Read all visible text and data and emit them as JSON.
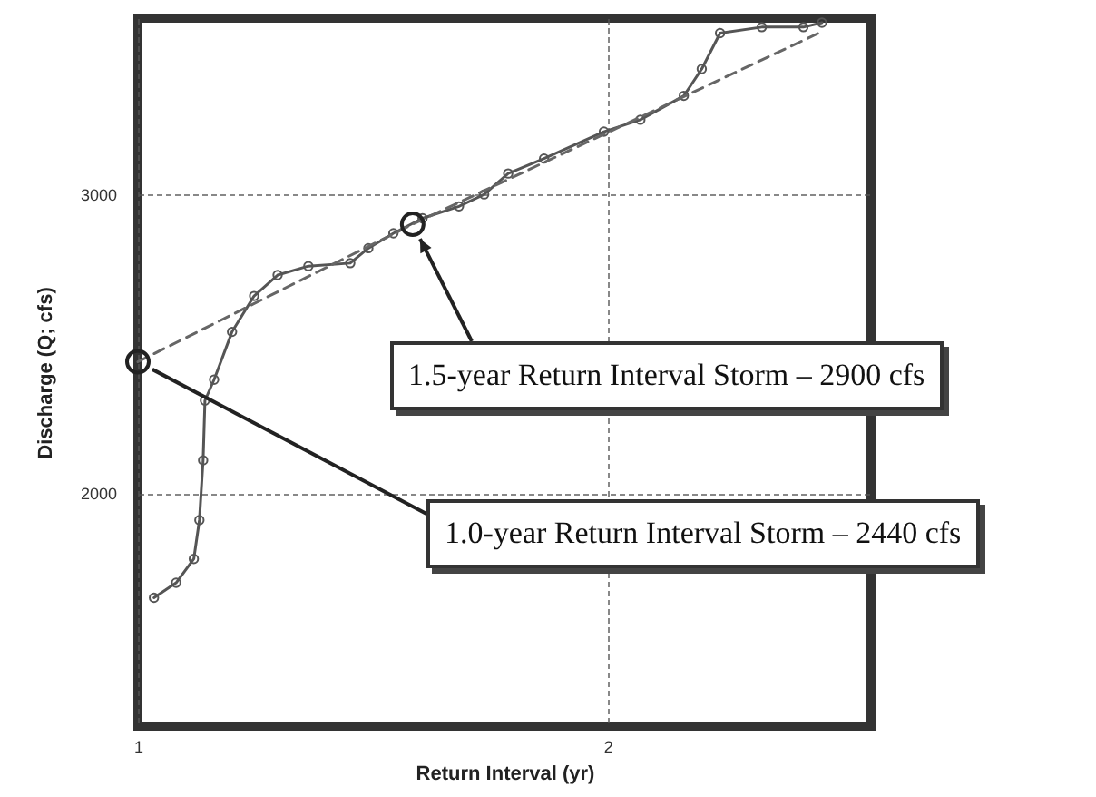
{
  "chart_data": {
    "type": "line",
    "xlabel": "Return Interval (yr)",
    "ylabel": "Discharge (Q; cfs)",
    "log": "x",
    "xlim": [
      1,
      2.95
    ],
    "xticks": [
      1,
      2
    ],
    "ylim": [
      1220,
      3590
    ],
    "yticks": [
      2000,
      3000
    ],
    "grid": true,
    "series": [
      {
        "color": "#555555",
        "marker": "circle",
        "line_style": "solid",
        "x": [
          1.024,
          1.058,
          1.086,
          1.095,
          1.101,
          1.104,
          1.119,
          1.149,
          1.187,
          1.229,
          1.286,
          1.368,
          1.405,
          1.458,
          1.522,
          1.606,
          1.667,
          1.727,
          1.821,
          1.989,
          2.099,
          2.238,
          2.298,
          2.361,
          2.511,
          2.67,
          2.744
        ],
        "values": [
          1650,
          1700,
          1780,
          1910,
          2110,
          2310,
          2380,
          2540,
          2660,
          2730,
          2760,
          2770,
          2820,
          2870,
          2920,
          2960,
          3000,
          3070,
          3120,
          3210,
          3250,
          3330,
          3420,
          3540,
          3560,
          3560,
          3575
        ]
      },
      {
        "color": "#666666",
        "line_style": "dashed",
        "x": [
          1,
          1.5,
          2.744
        ],
        "values": [
          2440,
          2900,
          3545
        ]
      }
    ],
    "annotations": [
      {
        "text": "1.5-year Return Interval Storm – 2900 cfs",
        "x": 1.5,
        "y": 2900
      },
      {
        "text": "1.0-year Return Interval Storm – 2440 cfs",
        "x": 1,
        "y": 2440
      }
    ]
  }
}
